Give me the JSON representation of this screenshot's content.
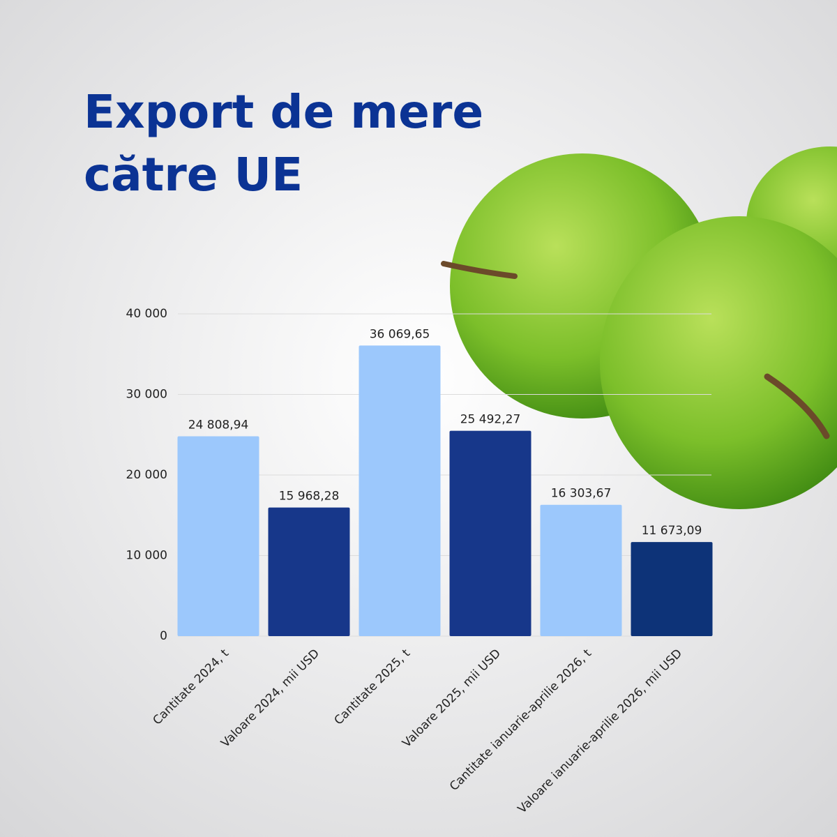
{
  "chart_data": {
    "type": "bar",
    "title": [
      "Export de mere",
      "către UE"
    ],
    "categories": [
      "Cantitate 2024, t",
      "Valoare 2024, mii USD",
      "Cantitate 2025, t",
      "Valoare 2025, mii USD",
      "Cantitate ianuarie-aprilie 2026, t",
      "Valoare ianuarie-aprilie 2026, mii USD"
    ],
    "values": [
      24808.94,
      15968.28,
      36069.65,
      25492.27,
      16303.67,
      11673.09
    ],
    "value_labels": [
      "24 808,94",
      "15 968,28",
      "36 069,65",
      "25 492,27",
      "16 303,67",
      "11 673,09"
    ],
    "colors": [
      "#9cc8fc",
      "#17378a",
      "#9cc8fc",
      "#17378a",
      "#9cc8fc",
      "#0d3378"
    ],
    "ylim": [
      0,
      40000
    ],
    "yticks": [
      0,
      {
        "value": 10000,
        "label": "10 000"
      },
      {
        "value": 20000,
        "label": "20 000"
      },
      {
        "value": 30000,
        "label": "30 000"
      },
      {
        "value": 40000,
        "label": "40 000"
      }
    ],
    "grid": true
  }
}
